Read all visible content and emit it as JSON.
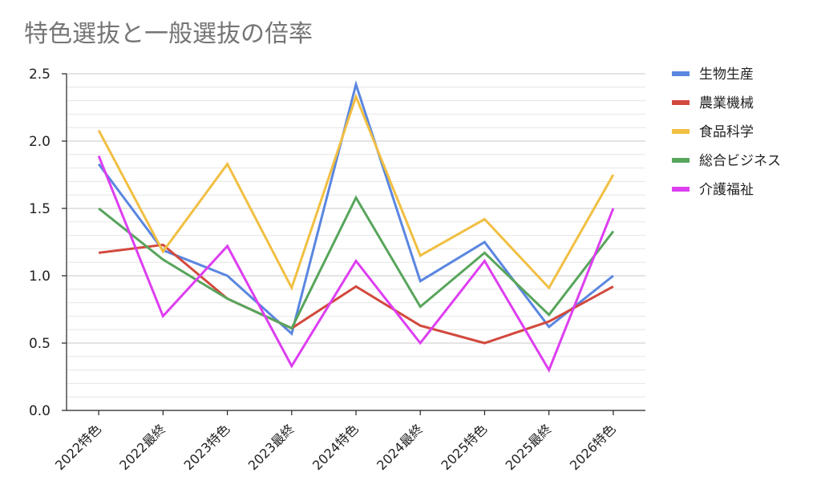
{
  "chart_data": {
    "type": "line",
    "title": "特色選抜と一般選抜の倍率",
    "xlabel": "",
    "ylabel": "",
    "categories": [
      "2022特色",
      "2022最終",
      "2023特色",
      "2023最終",
      "2024特色",
      "2024最終",
      "2025特色",
      "2025最終",
      "2026特色"
    ],
    "ylim": [
      0,
      2.5
    ],
    "yticks": [
      "0.0",
      "0.5",
      "1.0",
      "1.5",
      "2.0",
      "2.5"
    ],
    "minor_grid": true,
    "legend_position": "right",
    "series": [
      {
        "name": "生物生産",
        "color": "#5a86e0",
        "values": [
          1.83,
          1.19,
          1.0,
          0.57,
          2.42,
          0.96,
          1.25,
          0.62,
          1.0
        ]
      },
      {
        "name": "農業機械",
        "color": "#d2493d",
        "values": [
          1.17,
          1.23,
          0.83,
          0.61,
          0.92,
          0.63,
          0.5,
          0.66,
          0.92
        ]
      },
      {
        "name": "食品科学",
        "color": "#f1bf42",
        "values": [
          2.08,
          1.18,
          1.83,
          0.91,
          2.33,
          1.15,
          1.42,
          0.91,
          1.75
        ]
      },
      {
        "name": "総合ビジネス",
        "color": "#58a55c",
        "values": [
          1.5,
          1.12,
          0.83,
          0.61,
          1.58,
          0.77,
          1.17,
          0.71,
          1.33
        ]
      },
      {
        "name": "介護福祉",
        "color": "#dd3ef0",
        "values": [
          1.89,
          0.7,
          1.22,
          0.33,
          1.11,
          0.5,
          1.11,
          0.3,
          1.5
        ]
      }
    ]
  }
}
